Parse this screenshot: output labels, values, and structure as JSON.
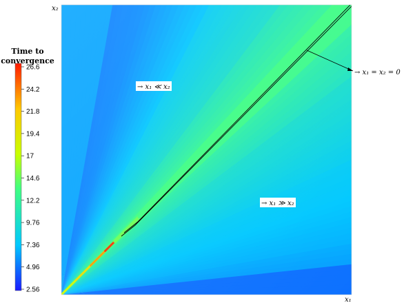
{
  "chart_data": {
    "type": "heatmap",
    "title": "",
    "xlabel": "x₁",
    "ylabel": "x₂",
    "colorbar": {
      "title_line1": "Time to",
      "title_line2": "convergence",
      "ticks": [
        "26.6",
        "24.2",
        "21.8",
        "19.4",
        "17",
        "14.6",
        "12.2",
        "9.76",
        "7.36",
        "4.96",
        "2.56"
      ],
      "range": [
        2.56,
        26.6
      ],
      "colormap": [
        "#1a1aff",
        "#00c8ff",
        "#40ff80",
        "#c8ff00",
        "#ffc800",
        "#ff1a00"
      ]
    },
    "annotations": [
      {
        "name": "diag",
        "text": "→ x₁ = x₂ = 0"
      },
      {
        "name": "upper",
        "text": "→ x₁ ≪ x₂"
      },
      {
        "name": "lower",
        "text": "→ x₁ ≫ x₂"
      }
    ],
    "diagonal_peak_value": 26.6,
    "background_min_value": 2.56
  }
}
